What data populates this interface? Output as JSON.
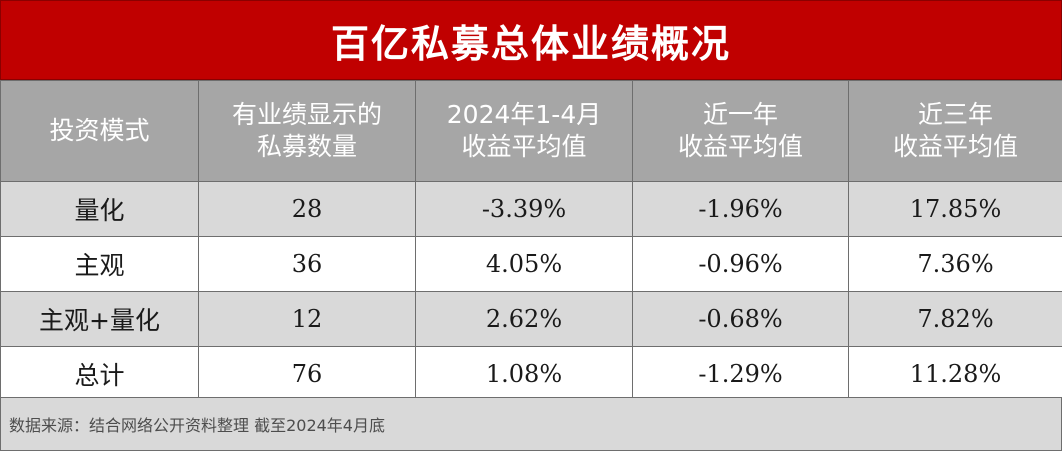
{
  "title": "百亿私募总体业绩概况",
  "table": {
    "headers": [
      [
        "投资模式"
      ],
      [
        "有业绩显示的",
        "私募数量"
      ],
      [
        "2024年1-4月",
        "收益平均值"
      ],
      [
        "近一年",
        "收益平均值"
      ],
      [
        "近三年",
        "收益平均值"
      ]
    ],
    "rows": [
      [
        "量化",
        "28",
        "-3.39%",
        "-1.96%",
        "17.85%"
      ],
      [
        "主观",
        "36",
        "4.05%",
        "-0.96%",
        "7.36%"
      ],
      [
        "主观+量化",
        "12",
        "2.62%",
        "-0.68%",
        "7.82%"
      ],
      [
        "总计",
        "76",
        "1.08%",
        "-1.29%",
        "11.28%"
      ]
    ]
  },
  "source": "数据来源：结合网络公开资料整理 截至2024年4月底",
  "colors": {
    "title_bg": "#c00000",
    "header_bg": "#a6a6a6",
    "row_shade": "#d9d9d9",
    "row_plain": "#ffffff"
  }
}
